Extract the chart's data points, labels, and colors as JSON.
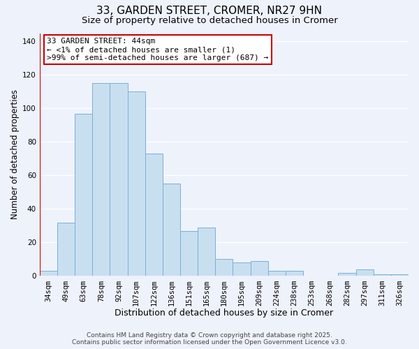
{
  "title": "33, GARDEN STREET, CROMER, NR27 9HN",
  "subtitle": "Size of property relative to detached houses in Cromer",
  "xlabel": "Distribution of detached houses by size in Cromer",
  "ylabel": "Number of detached properties",
  "categories": [
    "34sqm",
    "49sqm",
    "63sqm",
    "78sqm",
    "92sqm",
    "107sqm",
    "122sqm",
    "136sqm",
    "151sqm",
    "165sqm",
    "180sqm",
    "195sqm",
    "209sqm",
    "224sqm",
    "238sqm",
    "253sqm",
    "268sqm",
    "282sqm",
    "297sqm",
    "311sqm",
    "326sqm"
  ],
  "values": [
    3,
    32,
    97,
    115,
    115,
    110,
    73,
    55,
    27,
    29,
    10,
    8,
    9,
    3,
    3,
    0,
    0,
    2,
    4,
    1,
    1
  ],
  "bar_color": "#c8dff0",
  "bar_edge_color": "#7ab0d4",
  "highlight_line_color": "#cc0000",
  "ylim": [
    0,
    145
  ],
  "yticks": [
    0,
    20,
    40,
    60,
    80,
    100,
    120,
    140
  ],
  "annotation_title": "33 GARDEN STREET: 44sqm",
  "annotation_line1": "← <1% of detached houses are smaller (1)",
  "annotation_line2": ">99% of semi-detached houses are larger (687) →",
  "annotation_box_facecolor": "#ffffff",
  "annotation_box_edgecolor": "#cc0000",
  "footer_line1": "Contains HM Land Registry data © Crown copyright and database right 2025.",
  "footer_line2": "Contains public sector information licensed under the Open Government Licence v3.0.",
  "background_color": "#eef2fb",
  "grid_color": "#ffffff",
  "title_fontsize": 11,
  "subtitle_fontsize": 9.5,
  "xlabel_fontsize": 9,
  "ylabel_fontsize": 8.5,
  "tick_fontsize": 7.5,
  "annotation_fontsize": 8,
  "footer_fontsize": 6.5
}
